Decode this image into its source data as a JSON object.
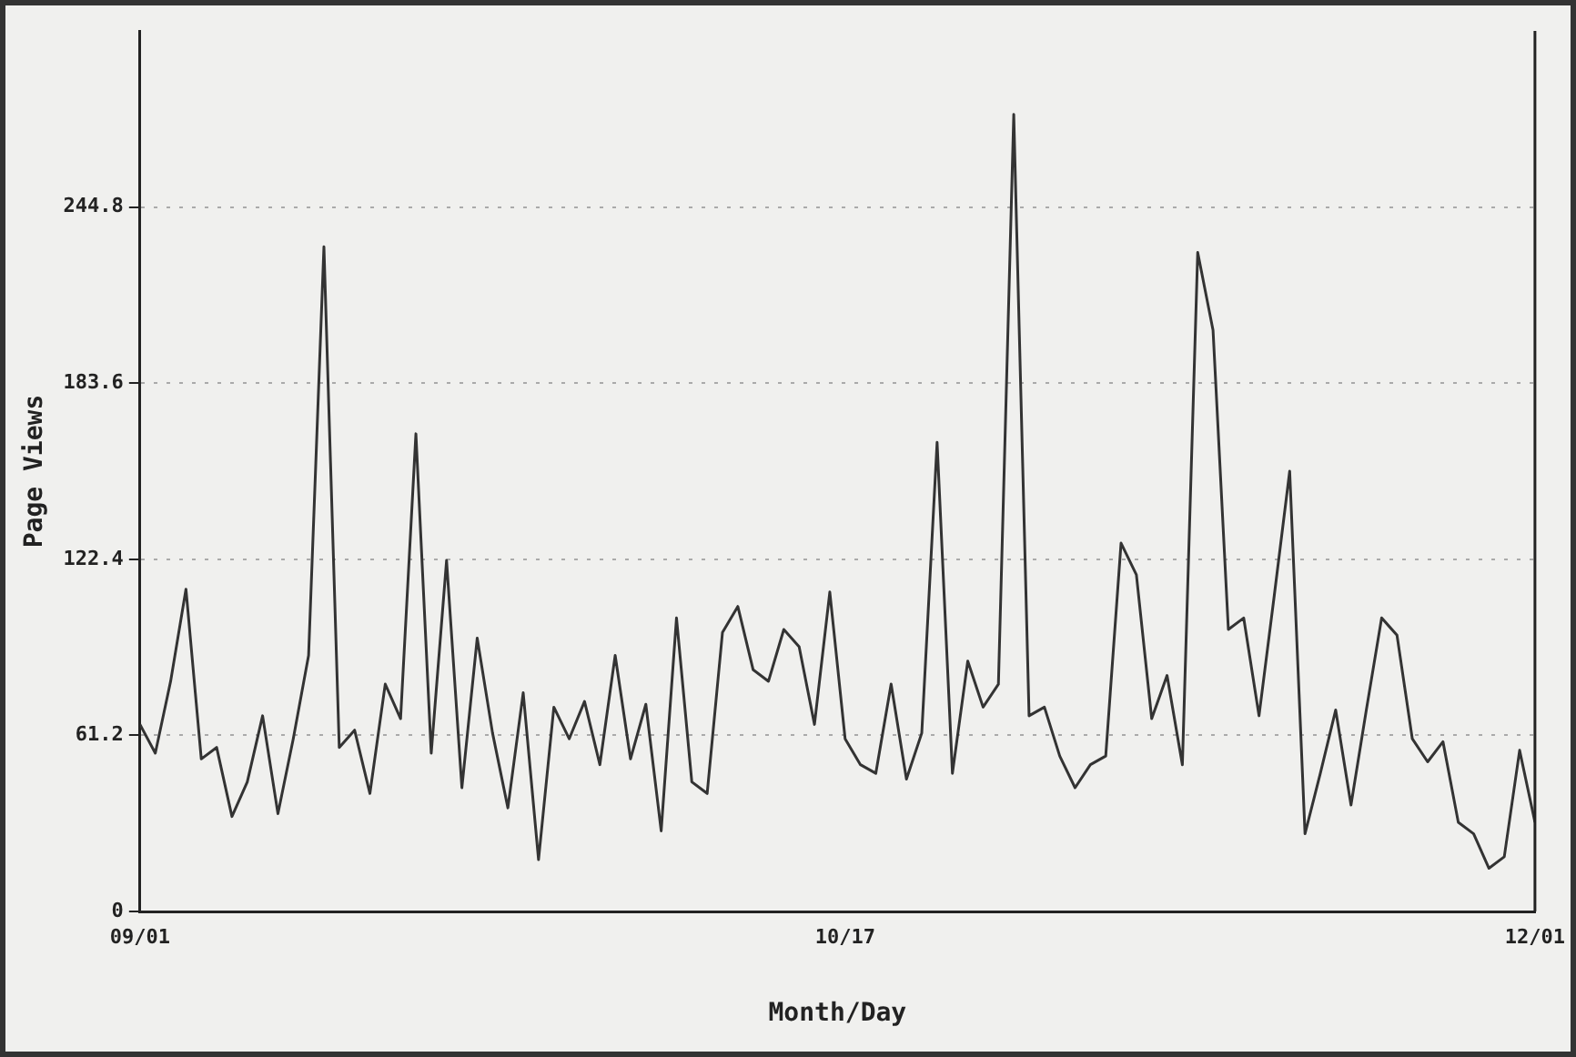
{
  "chart_data": {
    "type": "line",
    "xlabel": "Month/Day",
    "ylabel": "Page Views",
    "x": [
      "--09-01",
      "--09-02",
      "--09-03",
      "--09-04",
      "--09-05",
      "--09-06",
      "--09-07",
      "--09-08",
      "--09-09",
      "--09-10",
      "--09-11",
      "--09-12",
      "--09-13",
      "--09-14",
      "--09-15",
      "--09-16",
      "--09-17",
      "--09-18",
      "--09-19",
      "--09-20",
      "--09-21",
      "--09-22",
      "--09-23",
      "--09-24",
      "--09-25",
      "--09-26",
      "--09-27",
      "--09-28",
      "--09-29",
      "--09-30",
      "--10-01",
      "--10-02",
      "--10-03",
      "--10-04",
      "--10-05",
      "--10-06",
      "--10-07",
      "--10-08",
      "--10-09",
      "--10-10",
      "--10-11",
      "--10-12",
      "--10-13",
      "--10-14",
      "--10-15",
      "--10-16",
      "--10-17",
      "--10-18",
      "--10-19",
      "--10-20",
      "--10-21",
      "--10-22",
      "--10-23",
      "--10-24",
      "--10-25",
      "--10-26",
      "--10-27",
      "--10-28",
      "--10-29",
      "--10-30",
      "--10-31",
      "--11-01",
      "--11-02",
      "--11-03",
      "--11-04",
      "--11-05",
      "--11-06",
      "--11-07",
      "--11-08",
      "--11-09",
      "--11-10",
      "--11-11",
      "--11-12",
      "--11-13",
      "--11-14",
      "--11-15",
      "--11-16",
      "--11-17",
      "--11-18",
      "--11-19",
      "--11-20",
      "--11-21",
      "--11-22",
      "--11-23",
      "--11-24",
      "--11-25",
      "--11-26",
      "--11-27",
      "--11-28",
      "--11-29",
      "--11-30",
      "--12-01"
    ],
    "series": [
      {
        "color": "#333333",
        "values": [
          65,
          55,
          80,
          112,
          53,
          57,
          33,
          45,
          68,
          34,
          60,
          89,
          231,
          57,
          63,
          41,
          79,
          67,
          166,
          55,
          122,
          43,
          95,
          62,
          36,
          76,
          18,
          71,
          60,
          73,
          51,
          89,
          53,
          72,
          28,
          102,
          45,
          41,
          97,
          106,
          84,
          80,
          98,
          92,
          65,
          111,
          60,
          51,
          48,
          79,
          46,
          62,
          163,
          48,
          87,
          71,
          79,
          277,
          68,
          71,
          54,
          43,
          51,
          54,
          128,
          117,
          67,
          82,
          51,
          229,
          202,
          98,
          102,
          68,
          110,
          153,
          27,
          48,
          70,
          37,
          70,
          102,
          96,
          60,
          52,
          59,
          31,
          27,
          15,
          19,
          56,
          31
        ]
      }
    ],
    "xlim": [
      "--09-01",
      "--12-01"
    ],
    "xticks": [
      {
        "value": "--09-01",
        "label": "09/01"
      },
      {
        "value": "--10-17",
        "label": "10/17"
      },
      {
        "value": "--12-01",
        "label": "12/01"
      }
    ],
    "ylim": [
      0,
      306
    ],
    "yticks": [
      0,
      61.2,
      122.4,
      183.6,
      244.8
    ],
    "grid": "y",
    "legend": false,
    "marker": "none",
    "line_style": "solid"
  }
}
